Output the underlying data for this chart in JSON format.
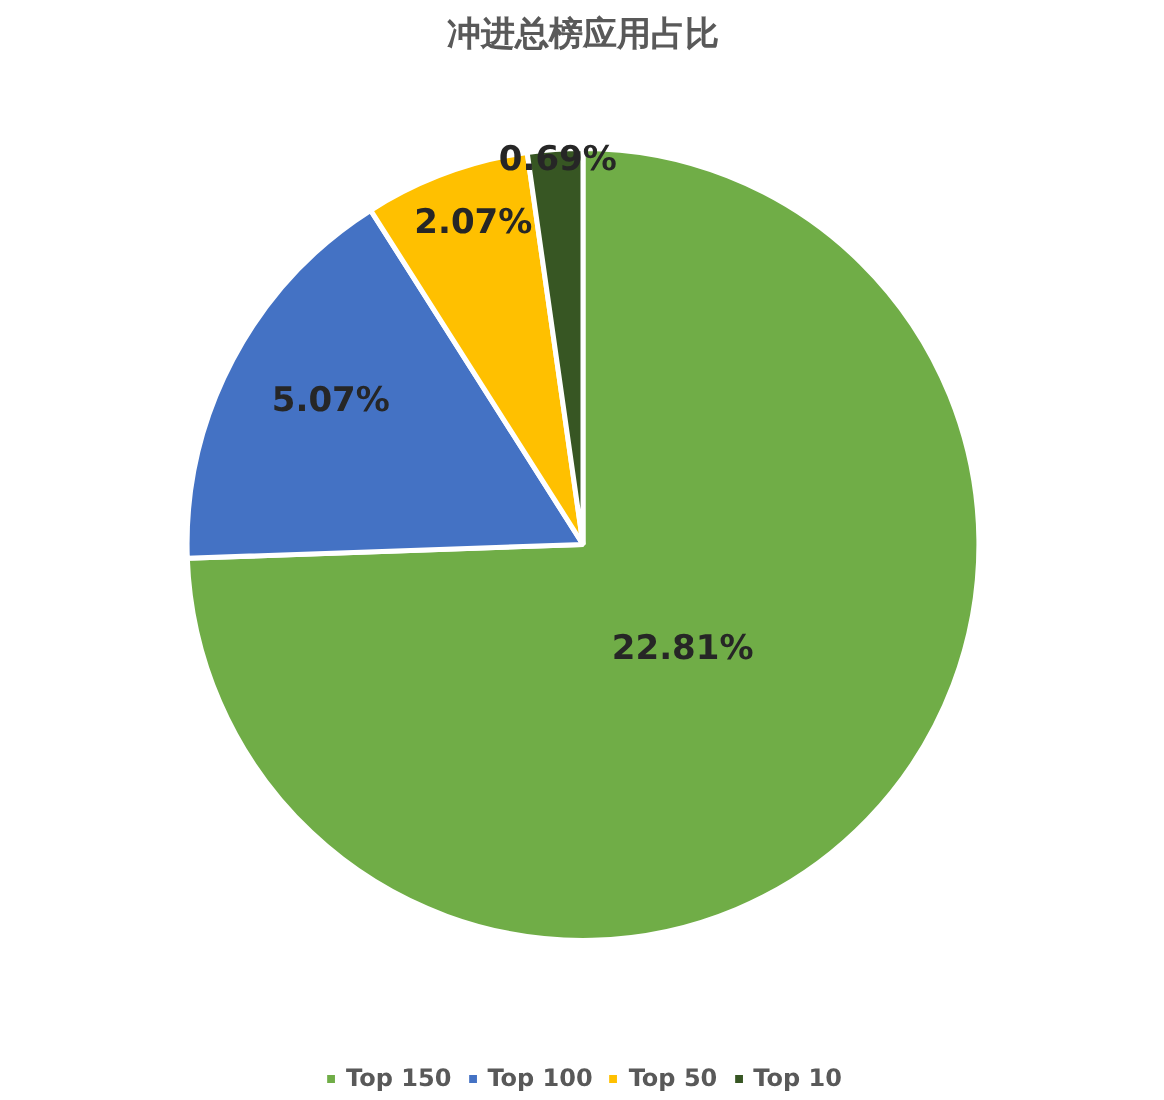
{
  "chart_data": {
    "type": "pie",
    "title": "冲进总榜应用占比",
    "categories": [
      "Top 150",
      "Top 100",
      "Top 50",
      "Top 10"
    ],
    "values": [
      22.81,
      5.07,
      2.07,
      0.69
    ],
    "value_labels": [
      "22.81%",
      "5.07%",
      "2.07%",
      "0.69%"
    ],
    "colors": [
      "#70ad47",
      "#4472c4",
      "#ffc000",
      "#375623"
    ],
    "legend": "bottom"
  }
}
